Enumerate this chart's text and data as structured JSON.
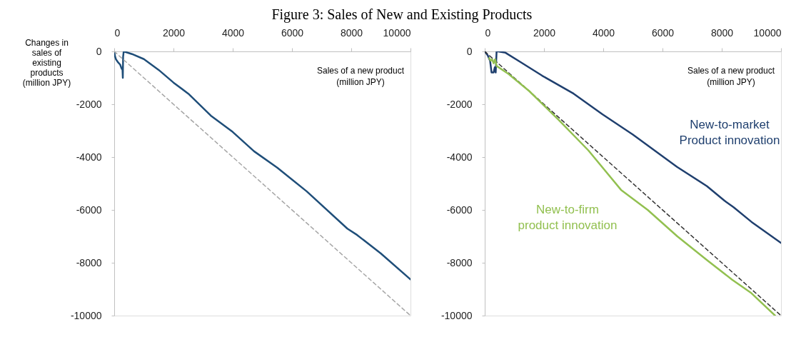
{
  "chart_data": [
    {
      "type": "line",
      "title": "Figure 3: Sales of New and Existing Products",
      "xlabel": "Sales of a new product\n(million JPY)",
      "ylabel": "Changes in\nsales of\nexisting\nproducts\n(million JPY)",
      "xlim": [
        0,
        10000
      ],
      "ylim": [
        -10000,
        0
      ],
      "xticks": [
        0,
        2000,
        4000,
        6000,
        8000,
        10000
      ],
      "yticks": [
        0,
        -2000,
        -4000,
        -6000,
        -8000,
        -10000
      ],
      "grid": false,
      "series": [
        {
          "color": "#1f4e79",
          "line_style": "solid",
          "x": [
            0,
            30,
            60,
            120,
            200,
            250,
            280,
            290,
            300,
            320,
            600,
            1000,
            1500,
            2000,
            2500,
            3260,
            4000,
            4720,
            5500,
            6500,
            7870,
            8200,
            9000,
            10000
          ],
          "values": [
            0,
            -200,
            -300,
            -400,
            -500,
            -650,
            -700,
            -1000,
            -200,
            0,
            -100,
            -290,
            -700,
            -1180,
            -1600,
            -2430,
            -3050,
            -3780,
            -4400,
            -5300,
            -6710,
            -6950,
            -7650,
            -8630
          ]
        },
        {
          "type": "line",
          "color": "#a6a6a6",
          "line_style": "dashed",
          "x": [
            0,
            10000
          ],
          "values": [
            0,
            -10000
          ]
        }
      ]
    },
    {
      "type": "line",
      "xlabel": "Sales of a new product\n(million JPY)",
      "xlim": [
        0,
        10000
      ],
      "ylim": [
        -10000,
        0
      ],
      "xticks": [
        0,
        2000,
        4000,
        6000,
        8000,
        10000
      ],
      "yticks": [
        0,
        -2000,
        -4000,
        -6000,
        -8000,
        -10000
      ],
      "grid": false,
      "series": [
        {
          "name": "New-to-market\nProduct innovation",
          "color": "#1f3f6e",
          "line_style": "solid",
          "x": [
            0,
            100,
            180,
            230,
            300,
            340,
            370,
            400,
            450,
            700,
            1200,
            1940,
            3000,
            3970,
            5000,
            6490,
            7500,
            8090,
            8400,
            9000,
            10000
          ],
          "values": [
            0,
            -150,
            -350,
            -800,
            -800,
            -600,
            -800,
            0,
            0,
            -50,
            -400,
            -920,
            -1600,
            -2380,
            -3150,
            -4370,
            -5100,
            -5650,
            -5900,
            -6450,
            -7250
          ]
        },
        {
          "type": "line",
          "color": "#333333",
          "line_style": "dashed",
          "x": [
            0,
            10000
          ],
          "values": [
            0,
            -10000
          ]
        },
        {
          "name": "New-to-firm\nproduct innovation",
          "color": "#92c050",
          "line_style": "solid",
          "x": [
            150,
            200,
            250,
            300,
            350,
            400,
            800,
            1500,
            2500,
            3500,
            4600,
            5500,
            6500,
            7500,
            8350,
            9000,
            9800
          ],
          "values": [
            -250,
            -350,
            -300,
            -450,
            -300,
            -550,
            -850,
            -1500,
            -2600,
            -3750,
            -5240,
            -6000,
            -7000,
            -7900,
            -8640,
            -9150,
            -10000
          ]
        }
      ]
    }
  ]
}
